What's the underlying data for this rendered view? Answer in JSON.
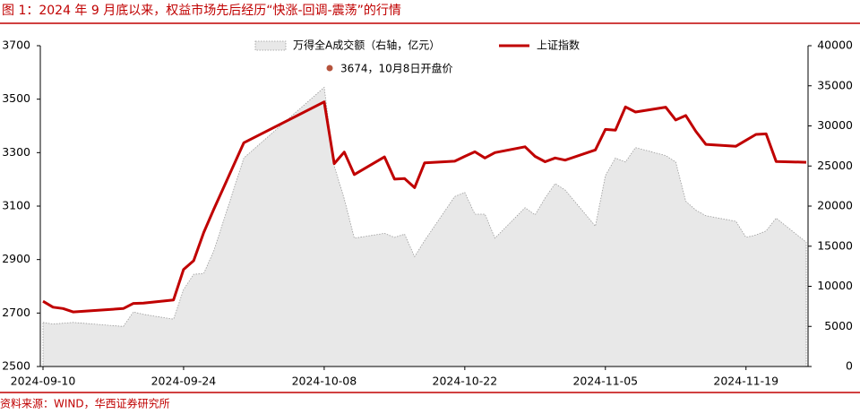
{
  "chart_data": {
    "type": "combo",
    "title": "图 1：2024 年 9 月底以来，权益市场先后经历“快涨-回调-震荡”的行情",
    "source": "资料来源：WIND，华西证券研究所",
    "x": [
      "2024-09-10",
      "2024-09-11",
      "2024-09-12",
      "2024-09-13",
      "2024-09-18",
      "2024-09-19",
      "2024-09-20",
      "2024-09-23",
      "2024-09-24",
      "2024-09-25",
      "2024-09-26",
      "2024-09-27",
      "2024-09-30",
      "2024-10-08",
      "2024-10-09",
      "2024-10-10",
      "2024-10-11",
      "2024-10-14",
      "2024-10-15",
      "2024-10-16",
      "2024-10-17",
      "2024-10-18",
      "2024-10-21",
      "2024-10-22",
      "2024-10-23",
      "2024-10-24",
      "2024-10-25",
      "2024-10-28",
      "2024-10-29",
      "2024-10-30",
      "2024-10-31",
      "2024-11-01",
      "2024-11-04",
      "2024-11-05",
      "2024-11-06",
      "2024-11-07",
      "2024-11-08",
      "2024-11-11",
      "2024-11-12",
      "2024-11-13",
      "2024-11-14",
      "2024-11-15",
      "2024-11-18",
      "2024-11-19",
      "2024-11-20",
      "2024-11-21",
      "2024-11-22",
      "2024-11-25"
    ],
    "xlim": [
      "2024-09-10",
      "2024-11-25"
    ],
    "xticks": [
      "2024-09-10",
      "2024-09-24",
      "2024-10-08",
      "2024-10-22",
      "2024-11-05",
      "2024-11-19"
    ],
    "ylim": [
      2500,
      3700
    ],
    "yticks": [
      2500,
      2700,
      2900,
      3100,
      3300,
      3500,
      3700
    ],
    "y2lim": [
      0,
      40000
    ],
    "y2ticks": [
      0,
      5000,
      10000,
      15000,
      20000,
      25000,
      30000,
      35000,
      40000
    ],
    "series": [
      {
        "name": "万得全A成交额（右轴，亿元）",
        "type": "area",
        "axis": "y2",
        "color": "#e8e8e8",
        "values": [
          5500,
          5300,
          5400,
          5500,
          5000,
          6800,
          6500,
          5900,
          9600,
          11500,
          11600,
          14400,
          26000,
          34800,
          25000,
          20900,
          16000,
          16600,
          16100,
          16500,
          13700,
          15700,
          21200,
          21700,
          19000,
          19000,
          16000,
          19800,
          18900,
          21000,
          22800,
          22000,
          17500,
          23800,
          26000,
          25500,
          27300,
          26300,
          25500,
          20600,
          19500,
          18800,
          18100,
          16100,
          16400,
          16900,
          18500,
          15500
        ]
      },
      {
        "name": "上证指数",
        "type": "line",
        "color": "#c00000",
        "values": [
          2744,
          2722,
          2717,
          2704,
          2717,
          2736,
          2737,
          2749,
          2863,
          2896,
          3001,
          3088,
          3337,
          3490,
          3259,
          3302,
          3218,
          3284,
          3201,
          3203,
          3169,
          3262,
          3268,
          3286,
          3303,
          3280,
          3300,
          3322,
          3286,
          3266,
          3280,
          3272,
          3310,
          3387,
          3384,
          3471,
          3452,
          3470,
          3422,
          3439,
          3380,
          3331,
          3324,
          3346,
          3368,
          3370,
          3267,
          3264
        ]
      }
    ],
    "annotation": {
      "text": "3674，10月8日开盘价",
      "color": "#b5533c"
    }
  }
}
